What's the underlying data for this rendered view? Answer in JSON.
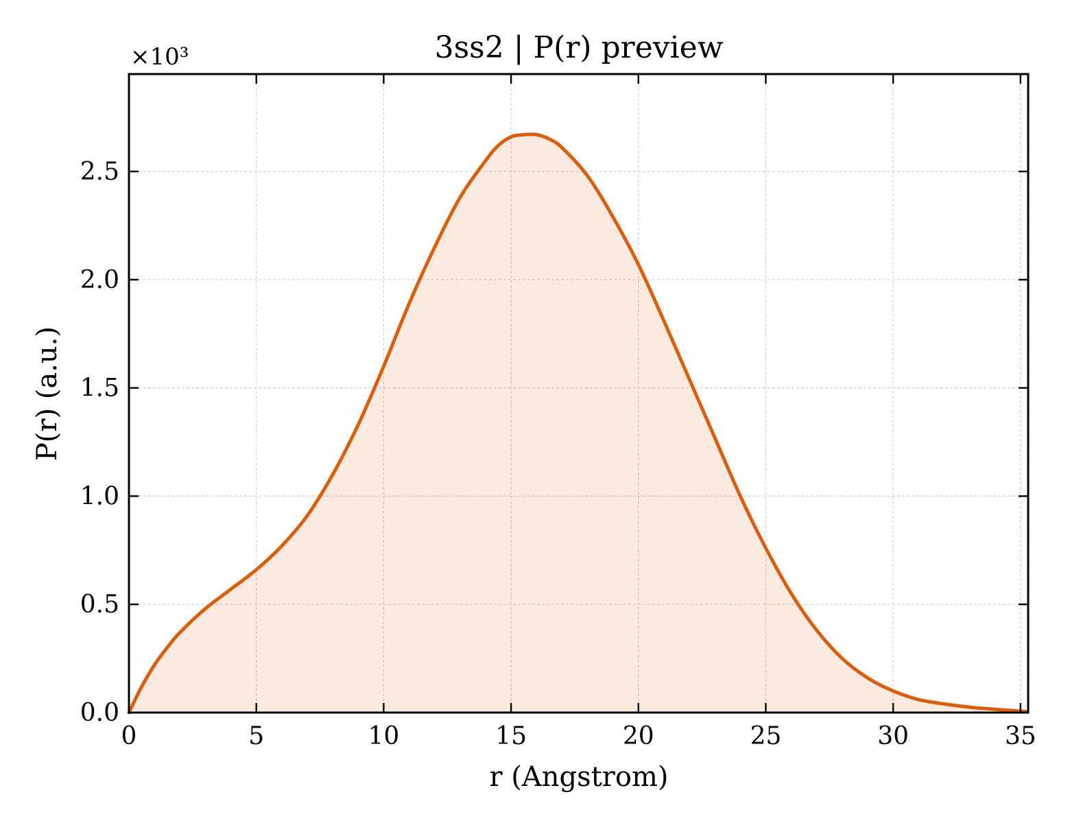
{
  "chart_data": {
    "type": "area",
    "title": "3ss2 | P(r) preview",
    "xlabel": "r (Angstrom)",
    "ylabel": "P(r) (a.u.)",
    "y_multiplier": "×10³",
    "xlim": [
      0,
      35.3
    ],
    "ylim": [
      0,
      2.95
    ],
    "xticks": [
      0,
      5,
      10,
      15,
      20,
      25,
      30,
      35
    ],
    "xtick_labels": [
      "0",
      "5",
      "10",
      "15",
      "20",
      "25",
      "30",
      "35"
    ],
    "yticks": [
      0,
      0.5,
      1.0,
      1.5,
      2.0,
      2.5
    ],
    "ytick_labels": [
      "0.0",
      "0.5",
      "1.0",
      "1.5",
      "2.0",
      "2.5"
    ],
    "grid": true,
    "colors": {
      "line": "#d95f0e",
      "fill": "#d95f0e"
    },
    "series": [
      {
        "x": [
          0,
          0.5,
          1,
          1.5,
          2,
          3,
          4,
          5,
          6,
          7,
          8,
          9,
          10,
          11,
          12,
          13,
          14,
          14.5,
          15,
          15.5,
          16,
          16.5,
          17,
          18,
          19,
          20,
          21,
          22,
          23,
          24,
          25,
          26,
          27,
          28,
          29,
          30,
          31,
          32,
          33,
          34,
          35.2
        ],
        "y": [
          0,
          0.12,
          0.22,
          0.3,
          0.37,
          0.48,
          0.57,
          0.66,
          0.77,
          0.91,
          1.1,
          1.33,
          1.6,
          1.89,
          2.15,
          2.38,
          2.55,
          2.62,
          2.66,
          2.67,
          2.67,
          2.65,
          2.61,
          2.48,
          2.29,
          2.07,
          1.81,
          1.54,
          1.27,
          1.0,
          0.76,
          0.55,
          0.38,
          0.25,
          0.16,
          0.1,
          0.06,
          0.04,
          0.025,
          0.015,
          0.005
        ]
      }
    ]
  }
}
